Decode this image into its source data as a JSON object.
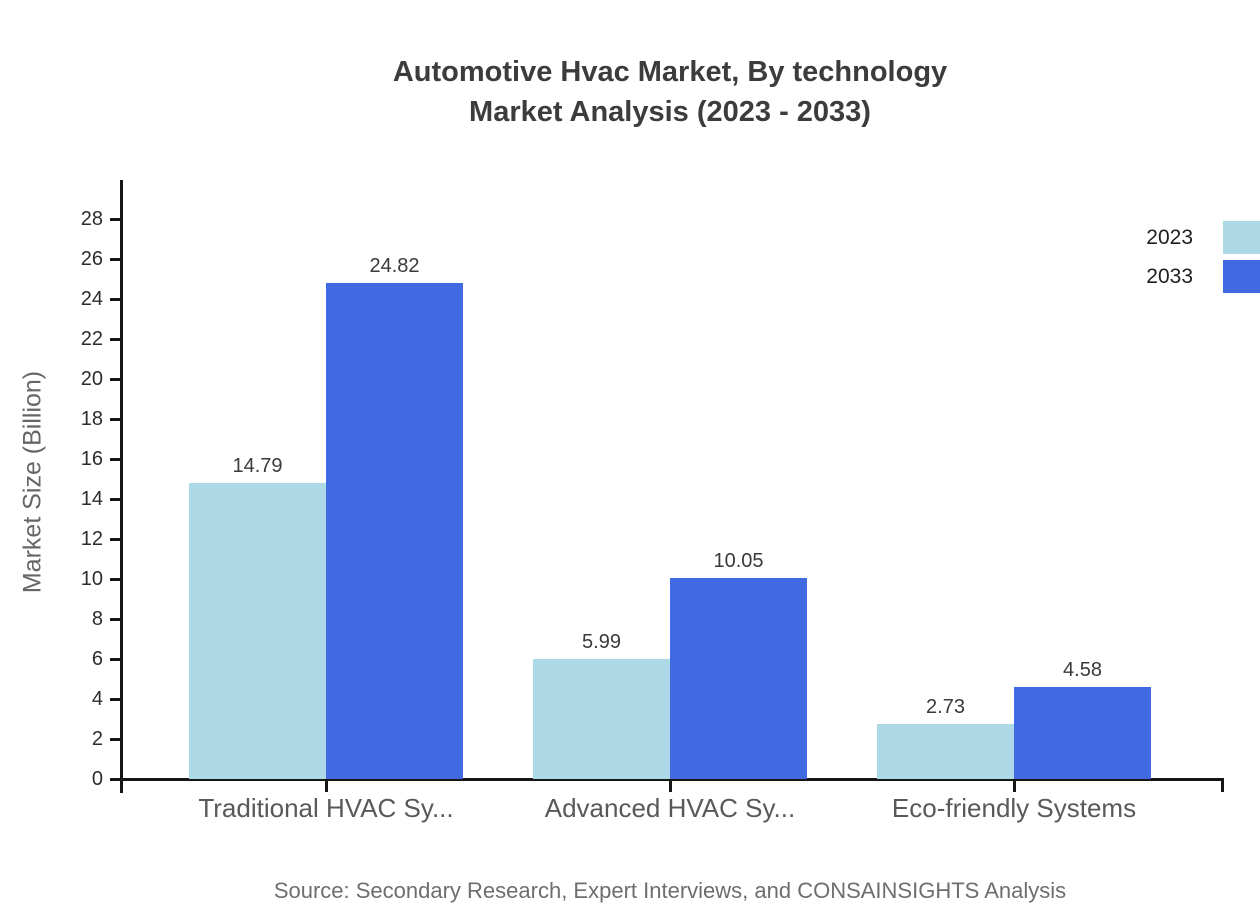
{
  "title": {
    "line1": "Automotive Hvac Market, By technology",
    "line2": "Market Analysis (2023 - 2033)"
  },
  "source": "Source: Secondary Research, Expert Interviews, and CONSAINSIGHTS Analysis",
  "chart_data": {
    "type": "bar",
    "title": "Automotive Hvac Market, By technology Market Analysis (2023 - 2033)",
    "categories": [
      "Traditional HVAC Sy...",
      "Advanced HVAC Sy...",
      "Eco-friendly Systems"
    ],
    "series": [
      {
        "name": "2023",
        "color": "#ADD8E6",
        "values": [
          14.79,
          5.99,
          2.73
        ]
      },
      {
        "name": "2033",
        "color": "#4169E1",
        "values": [
          24.82,
          10.05,
          4.58
        ]
      }
    ],
    "value_labels": [
      "14.79",
      "24.82",
      "5.99",
      "10.05",
      "2.73",
      "4.58"
    ],
    "xlabel": "",
    "ylabel": "Market Size (Billion)",
    "ylim": [
      0,
      29.9
    ],
    "yticks": [
      0,
      2,
      4,
      6,
      8,
      10,
      12,
      14,
      16,
      18,
      20,
      22,
      24,
      26,
      28
    ],
    "grid": false,
    "legend_position": "top-right",
    "value_label_format": "2-decimals"
  },
  "colors": {
    "series_2023": "#ADD8E6",
    "series_2033": "#4169E1",
    "axis_line": "#161616",
    "title_text": "#3c3c3c",
    "category_text": "#595959",
    "source_text": "#6e6e6e"
  }
}
